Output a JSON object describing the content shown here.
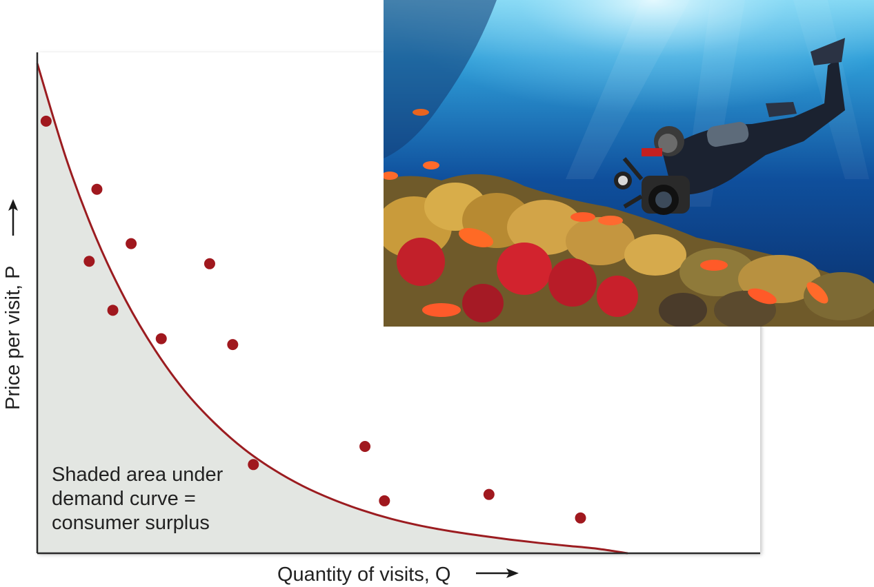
{
  "chart_data": {
    "type": "scatter",
    "xlabel": "Quantity of visits, Q",
    "ylabel": "Price per visit, P",
    "xlim": [
      0,
      100
    ],
    "ylim": [
      0,
      100
    ],
    "grid": false,
    "curve": {
      "name": "demand curve",
      "shaded": true,
      "x": [
        0,
        5,
        10,
        15,
        20,
        25,
        30,
        35,
        40,
        45,
        50,
        55,
        60,
        65,
        70,
        75,
        80,
        85,
        90,
        95,
        100
      ],
      "y": [
        100,
        80.2,
        64.3,
        51.6,
        41.4,
        33.1,
        26.6,
        21.3,
        17.1,
        13.7,
        11.0,
        8.8,
        7.0,
        5.6,
        4.5,
        3.6,
        2.8,
        2.1,
        1.5,
        0.9,
        0
      ]
    },
    "points": [
      {
        "x": 1.5,
        "y": 88.2
      },
      {
        "x": 10.1,
        "y": 74.3
      },
      {
        "x": 8.8,
        "y": 59.6
      },
      {
        "x": 15.9,
        "y": 63.2
      },
      {
        "x": 12.8,
        "y": 49.6
      },
      {
        "x": 21.0,
        "y": 43.8
      },
      {
        "x": 29.2,
        "y": 59.1
      },
      {
        "x": 33.1,
        "y": 42.6
      },
      {
        "x": 36.6,
        "y": 18.1
      },
      {
        "x": 55.5,
        "y": 21.8
      },
      {
        "x": 58.8,
        "y": 10.7
      },
      {
        "x": 76.5,
        "y": 12.0
      },
      {
        "x": 92.0,
        "y": 7.2
      }
    ],
    "annotation": [
      "Shaded area under",
      "demand curve =",
      "consumer surplus"
    ]
  },
  "colors": {
    "curve": "#9b1c20",
    "point": "#a0181e",
    "shade": "#e3e6e2",
    "axis": "#2a2a2a"
  },
  "photo": {
    "subject": "scuba diver photographing coral reef"
  }
}
